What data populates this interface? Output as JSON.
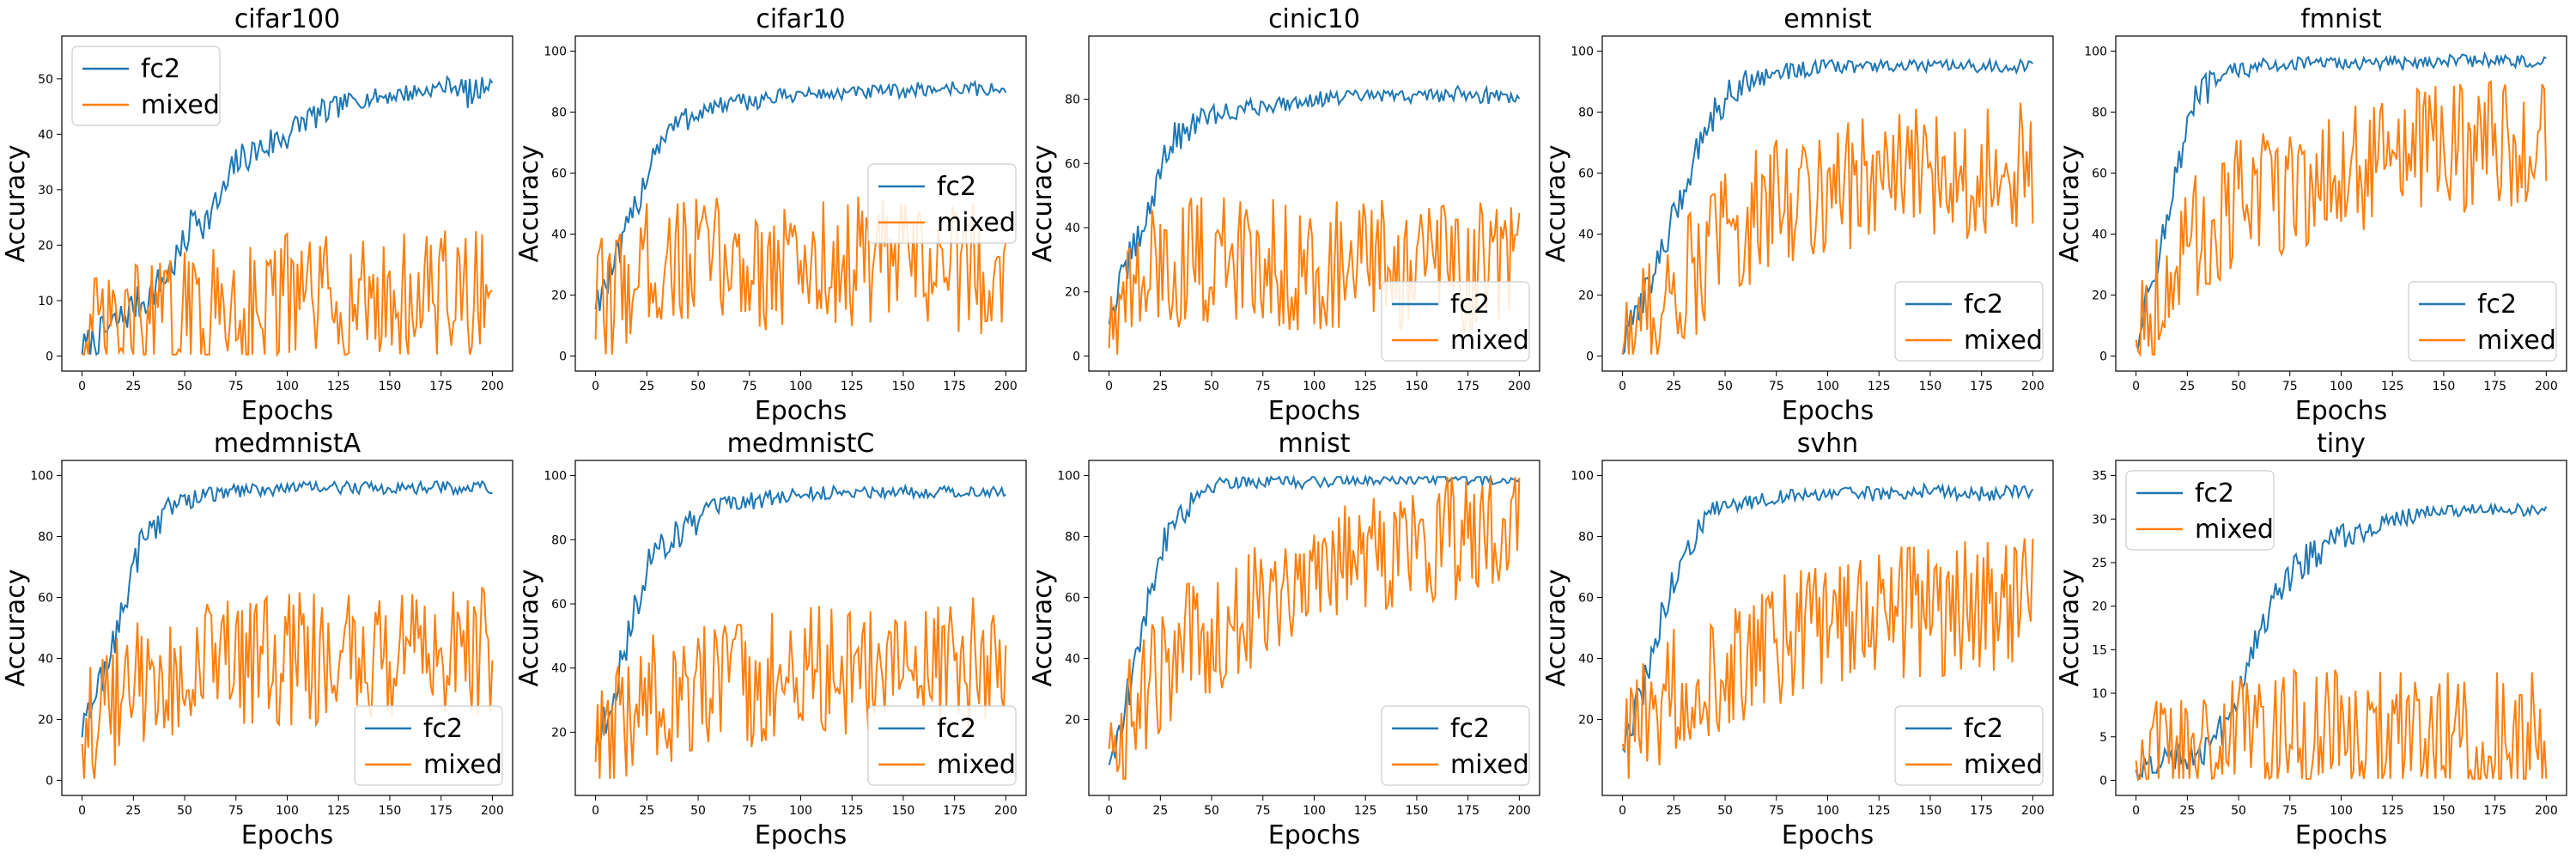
{
  "figure": {
    "series_names": [
      "fc2",
      "mixed"
    ],
    "colors": {
      "fc2": "#1f77b4",
      "mixed": "#ff7f0e"
    }
  },
  "chart_data": [
    {
      "type": "line",
      "title": "cifar100",
      "xlabel": "Epochs",
      "ylabel": "Accuracy",
      "xlim": [
        0,
        200
      ],
      "ylim": [
        0,
        55
      ],
      "xticks": [
        0,
        25,
        50,
        75,
        100,
        125,
        150,
        175,
        200
      ],
      "yticks": [
        0,
        10,
        20,
        30,
        40,
        50
      ],
      "legend": "top-left",
      "series": [
        {
          "name": "fc2",
          "x": [
            0,
            10,
            20,
            25,
            30,
            40,
            50,
            55,
            60,
            70,
            75,
            80,
            90,
            100,
            110,
            120,
            130,
            150,
            170,
            180,
            190,
            200
          ],
          "y": [
            1,
            4,
            7,
            9,
            10,
            14,
            20,
            26,
            24,
            30,
            35,
            36,
            38,
            40,
            43,
            44,
            46,
            47,
            48,
            49,
            47,
            50
          ]
        },
        {
          "name": "mixed",
          "x": [
            0,
            25,
            50,
            75,
            100,
            125,
            150,
            175,
            200
          ],
          "y": [
            2,
            5,
            7,
            9,
            10,
            10,
            10,
            11,
            11
          ]
        }
      ]
    },
    {
      "type": "line",
      "title": "cifar10",
      "xlabel": "Epochs",
      "ylabel": "Accuracy",
      "xlim": [
        0,
        200
      ],
      "ylim": [
        0,
        100
      ],
      "xticks": [
        0,
        25,
        50,
        75,
        100,
        125,
        150,
        175,
        200
      ],
      "yticks": [
        0,
        20,
        40,
        60,
        80,
        100
      ],
      "legend": "center-right",
      "series": [
        {
          "name": "fc2",
          "x": [
            0,
            10,
            20,
            25,
            30,
            40,
            50,
            60,
            80,
            100,
            120,
            150,
            175,
            200
          ],
          "y": [
            18,
            30,
            50,
            60,
            70,
            76,
            80,
            82,
            84,
            86,
            86,
            87,
            88,
            87
          ]
        },
        {
          "name": "mixed",
          "x": [
            0,
            25,
            50,
            75,
            100,
            125,
            150,
            175,
            200
          ],
          "y": [
            15,
            30,
            32,
            30,
            30,
            31,
            30,
            30,
            28
          ]
        }
      ]
    },
    {
      "type": "line",
      "title": "cinic10",
      "xlabel": "Epochs",
      "ylabel": "Accuracy",
      "xlim": [
        0,
        200
      ],
      "ylim": [
        0,
        95
      ],
      "xticks": [
        0,
        25,
        50,
        75,
        100,
        125,
        150,
        175,
        200
      ],
      "yticks": [
        0,
        20,
        40,
        60,
        80
      ],
      "legend": "bottom-right",
      "series": [
        {
          "name": "fc2",
          "x": [
            0,
            10,
            20,
            25,
            30,
            40,
            50,
            75,
            100,
            125,
            150,
            175,
            200
          ],
          "y": [
            12,
            30,
            45,
            60,
            66,
            72,
            75,
            78,
            80,
            81,
            81,
            82,
            80
          ]
        },
        {
          "name": "mixed",
          "x": [
            0,
            25,
            50,
            75,
            100,
            125,
            150,
            175,
            200
          ],
          "y": [
            10,
            28,
            30,
            30,
            28,
            28,
            28,
            28,
            28
          ]
        }
      ]
    },
    {
      "type": "line",
      "title": "emnist",
      "xlabel": "Epochs",
      "ylabel": "Accuracy",
      "xlim": [
        0,
        200
      ],
      "ylim": [
        0,
        100
      ],
      "xticks": [
        0,
        25,
        50,
        75,
        100,
        125,
        150,
        175,
        200
      ],
      "yticks": [
        0,
        20,
        40,
        60,
        80,
        100
      ],
      "legend": "bottom-right",
      "series": [
        {
          "name": "fc2",
          "x": [
            0,
            10,
            20,
            30,
            40,
            50,
            60,
            75,
            100,
            125,
            150,
            175,
            200
          ],
          "y": [
            2,
            20,
            35,
            55,
            75,
            85,
            90,
            93,
            95,
            95,
            95,
            95,
            95
          ]
        },
        {
          "name": "mixed",
          "x": [
            0,
            25,
            50,
            75,
            100,
            125,
            150,
            175,
            200
          ],
          "y": [
            5,
            20,
            40,
            50,
            56,
            58,
            60,
            60,
            62
          ]
        }
      ]
    },
    {
      "type": "line",
      "title": "fmnist",
      "xlabel": "Epochs",
      "ylabel": "Accuracy",
      "xlim": [
        0,
        200
      ],
      "ylim": [
        0,
        100
      ],
      "xticks": [
        0,
        25,
        50,
        75,
        100,
        125,
        150,
        175,
        200
      ],
      "yticks": [
        0,
        20,
        40,
        60,
        80,
        100
      ],
      "legend": "bottom-right",
      "series": [
        {
          "name": "fc2",
          "x": [
            0,
            10,
            20,
            25,
            30,
            40,
            50,
            75,
            100,
            125,
            150,
            175,
            200
          ],
          "y": [
            5,
            30,
            60,
            75,
            85,
            90,
            94,
            96,
            96,
            96,
            97,
            97,
            96
          ]
        },
        {
          "name": "mixed",
          "x": [
            0,
            25,
            50,
            75,
            100,
            125,
            150,
            175,
            200
          ],
          "y": [
            10,
            35,
            50,
            55,
            60,
            65,
            68,
            70,
            68
          ]
        }
      ]
    },
    {
      "type": "line",
      "title": "medmnistA",
      "xlabel": "Epochs",
      "ylabel": "Accuracy",
      "xlim": [
        0,
        200
      ],
      "ylim": [
        0,
        100
      ],
      "xticks": [
        0,
        25,
        50,
        75,
        100,
        125,
        150,
        175,
        200
      ],
      "yticks": [
        0,
        20,
        40,
        60,
        80,
        100
      ],
      "legend": "bottom-right",
      "series": [
        {
          "name": "fc2",
          "x": [
            0,
            10,
            20,
            25,
            30,
            40,
            50,
            75,
            100,
            125,
            150,
            175,
            200
          ],
          "y": [
            15,
            35,
            55,
            70,
            80,
            88,
            92,
            95,
            96,
            96,
            96,
            96,
            96
          ]
        },
        {
          "name": "mixed",
          "x": [
            0,
            25,
            50,
            75,
            100,
            125,
            150,
            175,
            200
          ],
          "y": [
            15,
            30,
            35,
            38,
            40,
            40,
            40,
            40,
            42
          ]
        }
      ]
    },
    {
      "type": "line",
      "title": "medmnistC",
      "xlabel": "Epochs",
      "ylabel": "Accuracy",
      "xlim": [
        0,
        200
      ],
      "ylim": [
        5,
        100
      ],
      "xticks": [
        0,
        25,
        50,
        75,
        100,
        125,
        150,
        175,
        200
      ],
      "yticks": [
        20,
        40,
        60,
        80,
        100
      ],
      "legend": "bottom-right",
      "series": [
        {
          "name": "fc2",
          "x": [
            0,
            10,
            20,
            25,
            30,
            40,
            50,
            60,
            75,
            100,
            125,
            150,
            175,
            200
          ],
          "y": [
            15,
            35,
            60,
            70,
            78,
            82,
            86,
            90,
            92,
            94,
            95,
            95,
            95,
            95
          ]
        },
        {
          "name": "mixed",
          "x": [
            0,
            25,
            50,
            75,
            100,
            125,
            150,
            175,
            200
          ],
          "y": [
            12,
            30,
            32,
            35,
            38,
            40,
            40,
            42,
            42
          ]
        }
      ]
    },
    {
      "type": "line",
      "title": "mnist",
      "xlabel": "Epochs",
      "ylabel": "Accuracy",
      "xlim": [
        0,
        200
      ],
      "ylim": [
        0,
        100
      ],
      "xticks": [
        0,
        25,
        50,
        75,
        100,
        125,
        150,
        175,
        200
      ],
      "yticks": [
        20,
        40,
        60,
        80,
        100
      ],
      "legend": "bottom-right",
      "series": [
        {
          "name": "fc2",
          "x": [
            0,
            10,
            20,
            25,
            30,
            40,
            50,
            60,
            75,
            100,
            125,
            150,
            175,
            200
          ],
          "y": [
            5,
            30,
            60,
            75,
            85,
            92,
            97,
            98,
            98,
            98,
            99,
            99,
            99,
            99
          ]
        },
        {
          "name": "mixed",
          "x": [
            0,
            25,
            50,
            75,
            100,
            125,
            150,
            175,
            200
          ],
          "y": [
            10,
            35,
            50,
            60,
            70,
            75,
            78,
            82,
            86
          ]
        }
      ]
    },
    {
      "type": "line",
      "title": "svhn",
      "xlabel": "Epochs",
      "ylabel": "Accuracy",
      "xlim": [
        0,
        200
      ],
      "ylim": [
        0,
        100
      ],
      "xticks": [
        0,
        25,
        50,
        75,
        100,
        125,
        150,
        175,
        200
      ],
      "yticks": [
        20,
        40,
        60,
        80,
        100
      ],
      "legend": "bottom-right",
      "series": [
        {
          "name": "fc2",
          "x": [
            0,
            10,
            20,
            25,
            30,
            40,
            50,
            75,
            100,
            125,
            150,
            175,
            200
          ],
          "y": [
            10,
            30,
            55,
            65,
            75,
            85,
            90,
            93,
            94,
            94,
            95,
            94,
            95
          ]
        },
        {
          "name": "mixed",
          "x": [
            0,
            25,
            50,
            75,
            100,
            125,
            150,
            175,
            200
          ],
          "y": [
            10,
            30,
            38,
            45,
            50,
            55,
            55,
            58,
            58
          ]
        }
      ]
    },
    {
      "type": "line",
      "title": "tiny",
      "xlabel": "Epochs",
      "ylabel": "Accuracy",
      "xlim": [
        0,
        200
      ],
      "ylim": [
        0,
        35
      ],
      "xticks": [
        0,
        25,
        50,
        75,
        100,
        125,
        150,
        175,
        200
      ],
      "yticks": [
        0,
        5,
        10,
        15,
        20,
        25,
        30,
        35
      ],
      "legend": "top-left",
      "series": [
        {
          "name": "fc2",
          "x": [
            0,
            10,
            20,
            25,
            30,
            40,
            50,
            60,
            70,
            80,
            100,
            125,
            150,
            175,
            200
          ],
          "y": [
            1,
            2,
            3,
            3,
            3.5,
            5,
            10,
            17,
            22,
            25,
            28,
            30,
            31,
            31,
            31
          ]
        },
        {
          "name": "mixed",
          "x": [
            0,
            25,
            50,
            75,
            100,
            125,
            150,
            175,
            200
          ],
          "y": [
            1,
            3,
            4,
            5,
            5,
            5,
            5,
            5,
            5
          ]
        }
      ]
    }
  ]
}
